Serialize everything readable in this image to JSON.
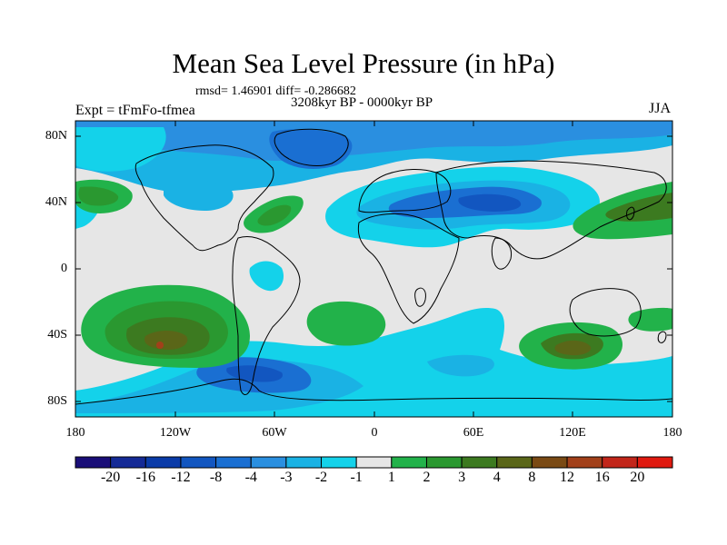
{
  "title": "Mean Sea Level Pressure (in hPa)",
  "stats": "rmsd= 1.46901 diff= -0.286682",
  "period": "3208kyr BP - 0000kyr BP",
  "experiment": "Expt = tFmFo-tfmea",
  "season": "JJA",
  "colors": {
    "background": "#e6e6e6",
    "ocean_note": "anomaly field shaded",
    "bins": [
      "#1a0e78",
      "#142a96",
      "#0a3ba8",
      "#1256c0",
      "#1a6fd2",
      "#2a8fe0",
      "#1ab2e4",
      "#14d2ea",
      "#e6e6e6",
      "#22b24a",
      "#2a9830",
      "#3c7a20",
      "#5a6618",
      "#7a4a14",
      "#a2401a",
      "#c2261a",
      "#e01a10"
    ]
  },
  "lat_labels": [
    "80N",
    "40N",
    "0",
    "40S",
    "80S"
  ],
  "lon_labels": [
    "180",
    "120W",
    "60W",
    "0",
    "60E",
    "120E",
    "180"
  ],
  "legend_labels": [
    "-20",
    "-16",
    "-12",
    "-8",
    "-4",
    "-3",
    "-2",
    "-1",
    "1",
    "2",
    "3",
    "4",
    "8",
    "12",
    "16",
    "20"
  ]
}
